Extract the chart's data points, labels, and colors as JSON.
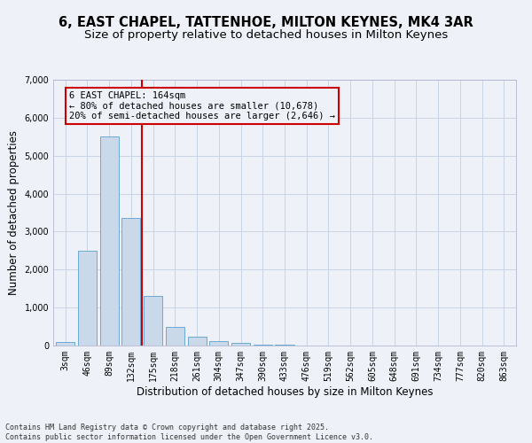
{
  "title1": "6, EAST CHAPEL, TATTENHOE, MILTON KEYNES, MK4 3AR",
  "title2": "Size of property relative to detached houses in Milton Keynes",
  "xlabel": "Distribution of detached houses by size in Milton Keynes",
  "ylabel": "Number of detached properties",
  "categories": [
    "3sqm",
    "46sqm",
    "89sqm",
    "132sqm",
    "175sqm",
    "218sqm",
    "261sqm",
    "304sqm",
    "347sqm",
    "390sqm",
    "433sqm",
    "476sqm",
    "519sqm",
    "562sqm",
    "605sqm",
    "648sqm",
    "691sqm",
    "734sqm",
    "777sqm",
    "820sqm",
    "863sqm"
  ],
  "values": [
    100,
    2500,
    5500,
    3350,
    1300,
    500,
    230,
    110,
    60,
    30,
    15,
    5,
    2,
    1,
    0,
    0,
    0,
    0,
    0,
    0,
    0
  ],
  "bar_color": "#c9d9ea",
  "bar_edge_color": "#6aaad4",
  "background_color": "#eef2f8",
  "vline_color": "#cc0000",
  "vline_x": 3.48,
  "annotation_text": "6 EAST CHAPEL: 164sqm\n← 80% of detached houses are smaller (10,678)\n20% of semi-detached houses are larger (2,646) →",
  "annotation_box_color": "#cc0000",
  "ylim": [
    0,
    7000
  ],
  "yticks": [
    0,
    1000,
    2000,
    3000,
    4000,
    5000,
    6000,
    7000
  ],
  "footnote": "Contains HM Land Registry data © Crown copyright and database right 2025.\nContains public sector information licensed under the Open Government Licence v3.0.",
  "grid_color": "#c8d4e4",
  "title_fontsize": 10.5,
  "subtitle_fontsize": 9.5,
  "label_fontsize": 8.5,
  "tick_fontsize": 7,
  "annot_fontsize": 7.5,
  "footnote_fontsize": 6
}
